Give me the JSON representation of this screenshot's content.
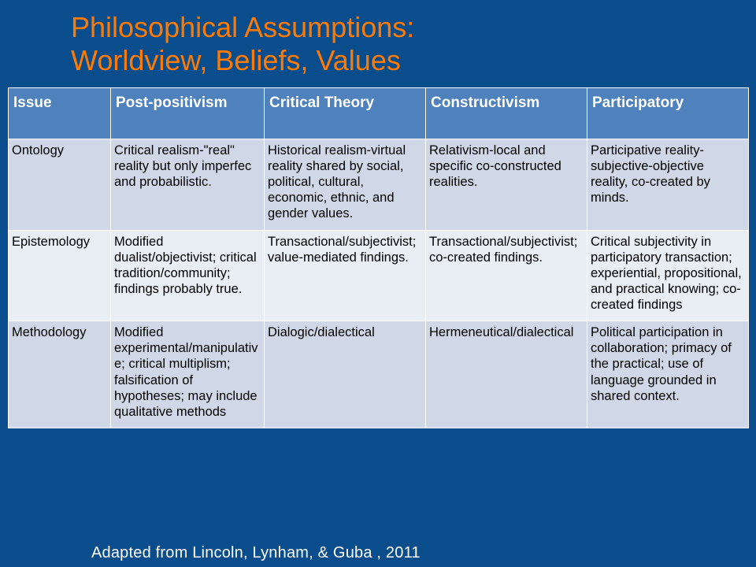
{
  "title_line1": "Philosophical Assumptions:",
  "title_line2": "Worldview, Beliefs, Values",
  "citation": "Adapted from Lincoln, Lynham, & Guba , 2011",
  "colors": {
    "page_bg": "#0a4d8c",
    "title_color": "#ff7a00",
    "header_bg": "#4f81bd",
    "header_text": "#ffffff",
    "row_alt_a": "#e9edf4",
    "row_alt_b": "#d0d8e8",
    "cell_text": "#000000",
    "citation_text": "#ffffff"
  },
  "columns": [
    "Issue",
    "Post-positivism",
    "Critical Theory",
    "Constructivism",
    "Participatory"
  ],
  "rows": [
    {
      "issue": "Ontology",
      "cells": [
        "Critical realism-\"real\" reality but only imperfec and probabilistic.",
        "Historical realism-virtual reality shared by social, political, cultural, economic, ethnic, and gender values.",
        "Relativism-local and specific co-constructed realities.",
        "Participative reality-subjective-objective reality, co-created by minds."
      ]
    },
    {
      "issue": "Epistemology",
      "cells": [
        "Modified dualist/objectivist; critical tradition/community; findings probably true.",
        "Transactional/subjectivist; value-mediated findings.",
        "Transactional/subjectivist; co-created findings.",
        "Critical subjectivity in participatory transaction; experiential, propositional, and practical knowing; co-created findings"
      ]
    },
    {
      "issue": "Methodology",
      "cells": [
        "Modified experimental/manipulative; critical multiplism; falsification of hypotheses; may include qualitative methods",
        "Dialogic/dialectical",
        "Hermeneutical/dialectical",
        "Political participation in collaboration; primacy of the practical; use of language grounded in shared context."
      ]
    }
  ]
}
